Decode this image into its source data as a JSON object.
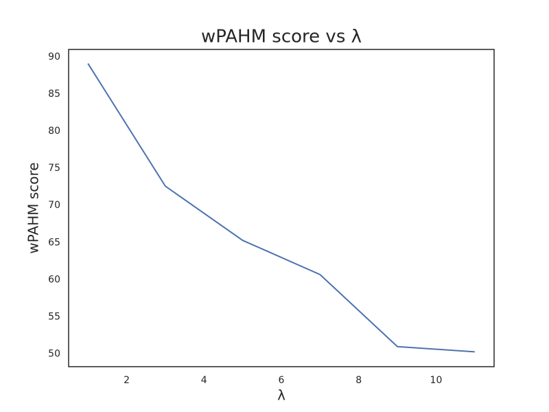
{
  "chart_data": {
    "type": "line",
    "title": "wPAHM score vs λ",
    "xlabel": "λ",
    "ylabel": "wPAHM score",
    "x": [
      1,
      3,
      5,
      7,
      9,
      11
    ],
    "series": [
      {
        "name": "wPAHM score",
        "color": "#4c72b0",
        "values": [
          89.1,
          72.6,
          65.3,
          60.7,
          51.0,
          50.3
        ]
      }
    ],
    "xlim": [
      0.5,
      11.5
    ],
    "xticks": [
      2,
      4,
      6,
      8,
      10
    ],
    "ylim": [
      48.3,
      91.0
    ],
    "yticks": [
      50,
      55,
      60,
      65,
      70,
      75,
      80,
      85,
      90
    ],
    "grid": false
  }
}
